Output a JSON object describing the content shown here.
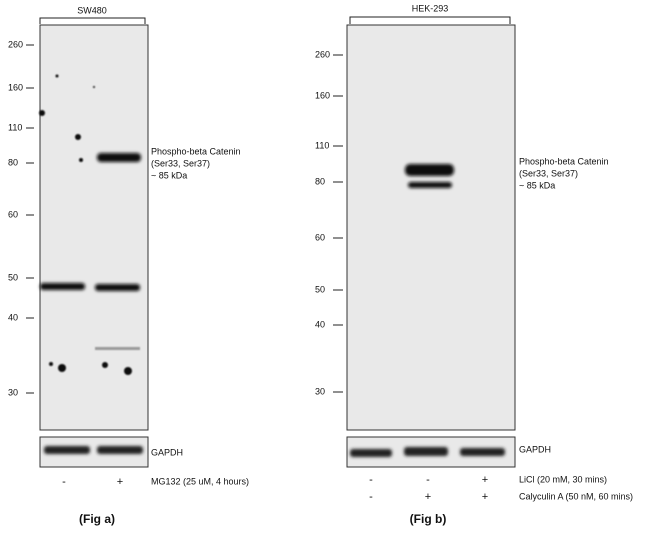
{
  "figures": [
    {
      "label": "(Fig a)",
      "cell_line": "SW480",
      "markers": [
        "260",
        "160",
        "110",
        "80",
        "60",
        "50",
        "40",
        "30"
      ],
      "band_label": [
        "Phospho-beta Catenin",
        "(Ser33, Ser37)",
        "~ 85 kDa"
      ],
      "loading_control": "GAPDH",
      "treatments": [
        {
          "name": "MG132 (25 uM, 4 hours)",
          "lanes": [
            "-",
            "+"
          ]
        }
      ]
    },
    {
      "label": "(Fig b)",
      "cell_line": "HEK-293",
      "markers": [
        "260",
        "160",
        "110",
        "80",
        "60",
        "50",
        "40",
        "30"
      ],
      "band_label": [
        "Phospho-beta Catenin",
        "(Ser33, Ser37)",
        "~ 85 kDa"
      ],
      "loading_control": "GAPDH",
      "treatments": [
        {
          "name": "LiCl (20 mM, 30 mins)",
          "lanes": [
            "-",
            "-",
            "+"
          ]
        },
        {
          "name": "Calyculin A (50 nM, 60 mins)",
          "lanes": [
            "-",
            "+",
            "+"
          ]
        }
      ]
    }
  ]
}
